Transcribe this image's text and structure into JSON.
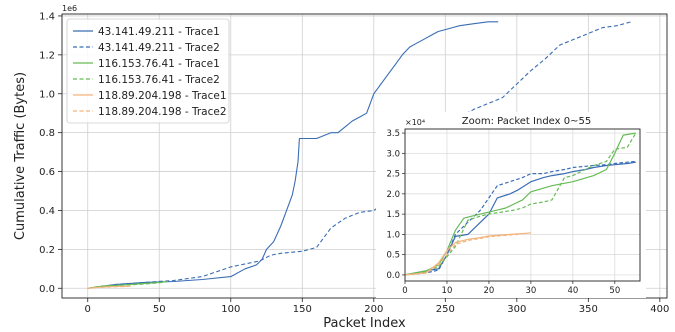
{
  "chart_data": {
    "type": "line",
    "title": "",
    "xlabel": "Packet Index",
    "ylabel": "Cumulative Traffic (Bytes)",
    "y_scale_label": "1e6",
    "xlim": [
      -18,
      405
    ],
    "ylim": [
      -0.05,
      1.41
    ],
    "xticks": [
      0,
      50,
      100,
      150,
      200,
      250,
      300,
      350,
      400
    ],
    "yticks": [
      0.0,
      0.2,
      0.4,
      0.6,
      0.8,
      1.0,
      1.2,
      1.4
    ],
    "ytick_labels": [
      "0.0",
      "0.2",
      "0.4",
      "0.6",
      "0.8",
      "1.0",
      "1.2",
      "1.4"
    ],
    "grid": true,
    "legend_position": "top-left",
    "series": [
      {
        "name": "43.141.49.211 - Trace1",
        "color": "#3a6db5",
        "dash": "solid",
        "x": [
          0,
          10,
          20,
          40,
          60,
          80,
          100,
          110,
          118,
          122,
          125,
          130,
          135,
          138,
          140,
          143,
          145,
          147,
          148,
          150,
          160,
          170,
          175,
          180,
          185,
          190,
          195,
          200,
          203,
          205,
          210,
          215,
          220,
          225,
          230,
          235,
          240,
          245,
          250,
          255,
          260,
          270,
          280,
          287
        ],
        "y": [
          0.0,
          0.01,
          0.02,
          0.03,
          0.035,
          0.045,
          0.06,
          0.1,
          0.12,
          0.15,
          0.2,
          0.24,
          0.32,
          0.38,
          0.42,
          0.48,
          0.55,
          0.65,
          0.77,
          0.77,
          0.77,
          0.8,
          0.8,
          0.83,
          0.86,
          0.88,
          0.9,
          1.0,
          1.03,
          1.05,
          1.1,
          1.15,
          1.2,
          1.24,
          1.26,
          1.28,
          1.3,
          1.32,
          1.33,
          1.34,
          1.35,
          1.36,
          1.37,
          1.37
        ]
      },
      {
        "name": "43.141.49.211 - Trace2",
        "color": "#3a6db5",
        "dash": "dashed",
        "x": [
          0,
          20,
          40,
          60,
          80,
          100,
          120,
          128,
          135,
          150,
          160,
          170,
          180,
          190,
          200,
          210,
          220,
          230,
          240,
          250,
          255,
          260,
          265,
          270,
          280,
          290,
          300,
          310,
          320,
          330,
          340,
          350,
          360,
          370,
          380
        ],
        "y": [
          0.0,
          0.02,
          0.03,
          0.04,
          0.06,
          0.11,
          0.14,
          0.17,
          0.18,
          0.19,
          0.21,
          0.31,
          0.36,
          0.39,
          0.4,
          0.45,
          0.5,
          0.6,
          0.75,
          0.8,
          0.84,
          0.86,
          0.9,
          0.92,
          0.95,
          0.98,
          1.05,
          1.12,
          1.18,
          1.25,
          1.28,
          1.31,
          1.34,
          1.35,
          1.37
        ]
      },
      {
        "name": "116.153.76.41 - Trace1",
        "color": "#66bb55",
        "dash": "solid",
        "x": [
          0,
          10,
          20,
          30,
          40,
          50,
          55
        ],
        "y": [
          0.0,
          0.01,
          0.015,
          0.02,
          0.025,
          0.03,
          0.035
        ]
      },
      {
        "name": "116.153.76.41 - Trace2",
        "color": "#66bb55",
        "dash": "dashed",
        "x": [
          0,
          10,
          20,
          30,
          40,
          50,
          56
        ],
        "y": [
          0.0,
          0.012,
          0.015,
          0.018,
          0.022,
          0.028,
          0.035
        ]
      },
      {
        "name": "118.89.204.198 - Trace1",
        "color": "#f5b37a",
        "dash": "solid",
        "x": [
          0,
          10,
          20,
          30
        ],
        "y": [
          0.0,
          0.006,
          0.009,
          0.01
        ]
      },
      {
        "name": "118.89.204.198 - Trace2",
        "color": "#f5b37a",
        "dash": "dashed",
        "x": [
          0,
          10,
          20,
          27
        ],
        "y": [
          0.0,
          0.005,
          0.008,
          0.009
        ]
      }
    ],
    "inset": {
      "title": "Zoom: Packet Index 0~55",
      "y_scale_label": "×10⁴",
      "xlim": [
        0,
        56
      ],
      "ylim": [
        -0.15,
        3.6
      ],
      "xticks": [
        0,
        10,
        20,
        30,
        40,
        50
      ],
      "yticks": [
        0.0,
        0.5,
        1.0,
        1.5,
        2.0,
        2.5,
        3.0,
        3.5
      ],
      "ytick_labels": [
        "0.0",
        "0.5",
        "1.0",
        "1.5",
        "2.0",
        "2.5",
        "3.0",
        "3.5"
      ],
      "series": [
        {
          "name": "43.141.49.211 - Trace1",
          "color": "#3a6db5",
          "dash": "solid",
          "x": [
            0,
            5,
            8,
            10,
            12,
            15,
            18,
            20,
            22,
            25,
            27,
            30,
            33,
            35,
            38,
            40,
            43,
            45,
            48,
            50,
            53,
            55
          ],
          "y": [
            0,
            0.1,
            0.15,
            0.5,
            0.95,
            1.0,
            1.3,
            1.5,
            1.9,
            2.0,
            2.1,
            2.3,
            2.4,
            2.45,
            2.5,
            2.55,
            2.6,
            2.65,
            2.7,
            2.72,
            2.75,
            2.78
          ]
        },
        {
          "name": "43.141.49.211 - Trace2",
          "color": "#3a6db5",
          "dash": "dashed",
          "x": [
            0,
            5,
            8,
            10,
            12,
            15,
            18,
            20,
            22,
            25,
            28,
            30,
            33,
            35,
            38,
            40,
            43,
            45,
            48,
            50,
            53,
            55
          ],
          "y": [
            0,
            0.05,
            0.12,
            0.5,
            1.0,
            1.3,
            1.6,
            1.9,
            2.2,
            2.3,
            2.4,
            2.5,
            2.5,
            2.55,
            2.6,
            2.65,
            2.68,
            2.7,
            2.72,
            2.75,
            2.78,
            2.8
          ]
        },
        {
          "name": "116.153.76.41 - Trace1",
          "color": "#66bb55",
          "dash": "solid",
          "x": [
            0,
            5,
            8,
            10,
            12,
            14,
            16,
            18,
            20,
            22,
            24,
            26,
            28,
            30,
            35,
            40,
            45,
            48,
            50,
            52,
            55
          ],
          "y": [
            0,
            0.1,
            0.25,
            0.6,
            1.1,
            1.4,
            1.45,
            1.5,
            1.55,
            1.6,
            1.65,
            1.75,
            1.85,
            2.05,
            2.2,
            2.3,
            2.45,
            2.6,
            3.0,
            3.45,
            3.5
          ]
        },
        {
          "name": "116.153.76.41 - Trace2",
          "color": "#66bb55",
          "dash": "dashed",
          "x": [
            0,
            5,
            8,
            10,
            12,
            15,
            18,
            20,
            23,
            26,
            28,
            30,
            33,
            35,
            38,
            40,
            43,
            45,
            48,
            50,
            53,
            55
          ],
          "y": [
            0,
            0.08,
            0.2,
            0.45,
            0.7,
            1.35,
            1.45,
            1.5,
            1.55,
            1.6,
            1.65,
            1.75,
            1.8,
            1.85,
            2.4,
            2.45,
            2.6,
            2.7,
            2.8,
            3.1,
            3.15,
            3.5
          ]
        },
        {
          "name": "118.89.204.198 - Trace1",
          "color": "#f5b37a",
          "dash": "solid",
          "x": [
            0,
            5,
            8,
            10,
            12,
            15,
            18,
            20,
            25,
            28,
            30
          ],
          "y": [
            0,
            0.05,
            0.3,
            0.6,
            0.8,
            0.88,
            0.92,
            0.96,
            1.0,
            1.02,
            1.04
          ]
        },
        {
          "name": "118.89.204.198 - Trace2",
          "color": "#f5b37a",
          "dash": "dashed",
          "x": [
            0,
            5,
            8,
            10,
            12,
            15,
            18,
            20,
            23,
            27
          ],
          "y": [
            0,
            0.05,
            0.25,
            0.5,
            0.75,
            0.85,
            0.9,
            0.94,
            0.97,
            1.0
          ]
        }
      ]
    }
  }
}
